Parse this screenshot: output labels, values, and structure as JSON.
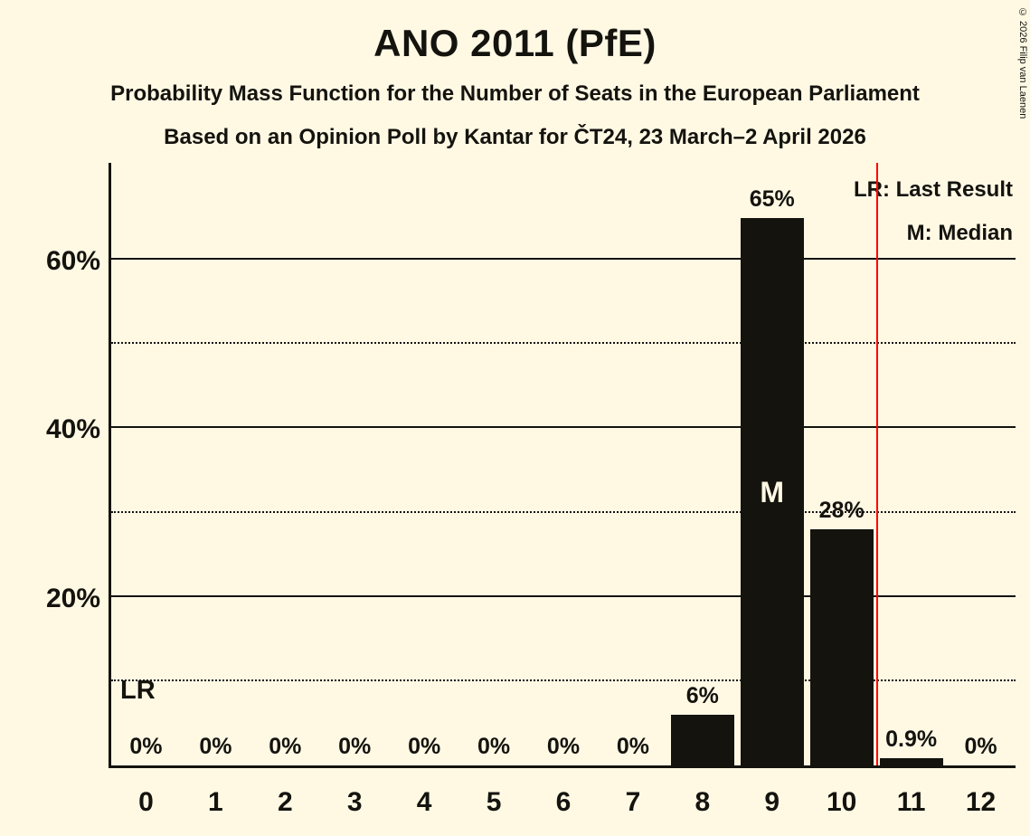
{
  "page": {
    "background": "#FFF9E4",
    "copyright": "© 2026 Filip van Laenen"
  },
  "header": {
    "title": "ANO 2011 (PfE)",
    "subtitle1": "Probability Mass Function for the Number of Seats in the European Parliament",
    "subtitle2": "Based on an Opinion Poll by Kantar for ČT24, 23 March–2 April 2026"
  },
  "chart_data": {
    "type": "bar",
    "title": "ANO 2011 (PfE)",
    "subtitle1": "Probability Mass Function for the Number of Seats in the European Parliament",
    "subtitle2": "Based on an Opinion Poll by Kantar for ČT24, 23 March–2 April 2026",
    "xlabel": "",
    "ylabel": "",
    "categories": [
      "0",
      "1",
      "2",
      "3",
      "4",
      "5",
      "6",
      "7",
      "8",
      "9",
      "10",
      "11",
      "12"
    ],
    "values": [
      0,
      0,
      0,
      0,
      0,
      0,
      0,
      0,
      6,
      65,
      28,
      0.9,
      0
    ],
    "bar_labels": [
      "0%",
      "0%",
      "0%",
      "0%",
      "0%",
      "0%",
      "0%",
      "0%",
      "6%",
      "65%",
      "28%",
      "0.9%",
      "0%"
    ],
    "median_category": "9",
    "median_marker_label": "M",
    "last_result_label": "LR",
    "last_result_line_position": 10.5,
    "ylim": [
      0,
      71.5
    ],
    "yticks_solid": [
      20,
      40,
      60
    ],
    "ytick_labels": [
      "20%",
      "40%",
      "60%"
    ],
    "yticks_dotted": [
      10,
      30,
      50
    ],
    "grid": true,
    "legend_position": "top-right",
    "legend_entries": [
      "LR: Last Result",
      "M: Median"
    ],
    "bar_color": "#14130E",
    "last_result_line_color": "#FF0000",
    "text_color": "#14130E"
  }
}
